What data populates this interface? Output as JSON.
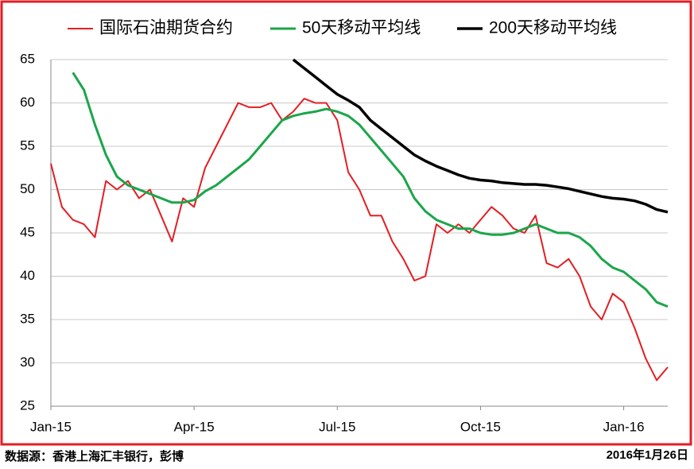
{
  "chart_data": {
    "type": "line",
    "categories": [
      "Jan-15",
      null,
      null,
      null,
      null,
      null,
      null,
      null,
      null,
      null,
      null,
      null,
      null,
      "Apr-15",
      null,
      null,
      null,
      null,
      null,
      null,
      null,
      null,
      null,
      null,
      null,
      null,
      "Jul-15",
      null,
      null,
      null,
      null,
      null,
      null,
      null,
      null,
      null,
      null,
      null,
      null,
      "Oct-15",
      null,
      null,
      null,
      null,
      null,
      null,
      null,
      null,
      null,
      null,
      null,
      null,
      "Jan-16",
      null,
      null,
      null,
      null
    ],
    "series": [
      {
        "name": "国际石油期货合约",
        "color": "#e31e24",
        "width": 2,
        "values": [
          53,
          48,
          46.5,
          46,
          44.5,
          51,
          50,
          51,
          49,
          50,
          47,
          44,
          49,
          48,
          52.5,
          55,
          57.5,
          60,
          59.5,
          59.5,
          60,
          58,
          59,
          60.5,
          60,
          60,
          58,
          52,
          50,
          47,
          47,
          44,
          42,
          39.5,
          40,
          46,
          45,
          46,
          45,
          46.5,
          48,
          47,
          45.5,
          45,
          47,
          41.5,
          41,
          42,
          40,
          36.5,
          35,
          38,
          37,
          34,
          30.5,
          28,
          29.5
        ]
      },
      {
        "name": "50天移动平均线",
        "color": "#1aa64a",
        "width": 3,
        "values": [
          null,
          null,
          63.5,
          61.5,
          57.5,
          54,
          51.5,
          50.5,
          50,
          49.5,
          49,
          48.5,
          48.5,
          48.8,
          49.8,
          50.5,
          51.5,
          52.5,
          53.5,
          55,
          56.5,
          58,
          58.5,
          58.8,
          59,
          59.3,
          59,
          58.5,
          57.5,
          56,
          54.5,
          53,
          51.5,
          49,
          47.5,
          46.5,
          46,
          45.5,
          45.5,
          45,
          44.8,
          44.8,
          45,
          45.5,
          46,
          45.5,
          45,
          45,
          44.5,
          43.5,
          42,
          41,
          40.5,
          39.5,
          38.5,
          37,
          36.5
        ]
      },
      {
        "name": "200天移动平均线",
        "color": "#000000",
        "width": 3.5,
        "values": [
          null,
          null,
          null,
          null,
          null,
          null,
          null,
          null,
          null,
          null,
          null,
          null,
          null,
          null,
          null,
          null,
          null,
          null,
          null,
          null,
          null,
          null,
          65,
          64,
          63,
          62,
          61,
          60.3,
          59.5,
          58,
          57,
          56,
          55,
          54,
          53.3,
          52.7,
          52.2,
          51.7,
          51.3,
          51.1,
          51,
          50.8,
          50.7,
          50.6,
          50.6,
          50.5,
          50.3,
          50.1,
          49.8,
          49.5,
          49.2,
          49,
          48.9,
          48.7,
          48.3,
          47.7,
          47.4
        ]
      }
    ],
    "ylim": [
      25,
      65
    ],
    "yticks": [
      25,
      30,
      35,
      40,
      45,
      50,
      55,
      60,
      65
    ],
    "grid": true
  },
  "footer": {
    "source": "数据源：香港上海汇丰银行，彭博",
    "date": "2016年1月26日"
  }
}
